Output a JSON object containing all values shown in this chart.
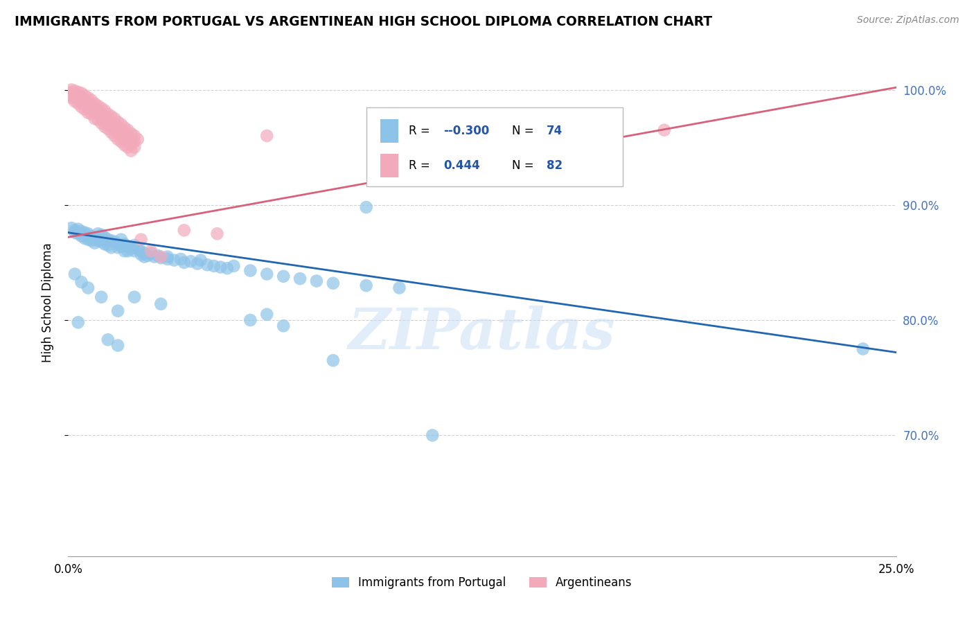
{
  "title": "IMMIGRANTS FROM PORTUGAL VS ARGENTINEAN HIGH SCHOOL DIPLOMA CORRELATION CHART",
  "source": "Source: ZipAtlas.com",
  "ylabel": "High School Diploma",
  "blue_color": "#8dc3e8",
  "pink_color": "#f2aabb",
  "blue_line_color": "#2066b0",
  "pink_line_color": "#d9607a",
  "watermark": "ZIPatlas",
  "blue_scatter": [
    [
      0.001,
      0.88
    ],
    [
      0.002,
      0.878
    ],
    [
      0.002,
      0.876
    ],
    [
      0.003,
      0.879
    ],
    [
      0.003,
      0.875
    ],
    [
      0.004,
      0.877
    ],
    [
      0.004,
      0.873
    ],
    [
      0.005,
      0.876
    ],
    [
      0.005,
      0.871
    ],
    [
      0.006,
      0.875
    ],
    [
      0.006,
      0.87
    ],
    [
      0.007,
      0.873
    ],
    [
      0.007,
      0.869
    ],
    [
      0.008,
      0.872
    ],
    [
      0.008,
      0.867
    ],
    [
      0.009,
      0.875
    ],
    [
      0.009,
      0.869
    ],
    [
      0.01,
      0.874
    ],
    [
      0.01,
      0.868
    ],
    [
      0.011,
      0.872
    ],
    [
      0.011,
      0.866
    ],
    [
      0.012,
      0.87
    ],
    [
      0.012,
      0.865
    ],
    [
      0.013,
      0.869
    ],
    [
      0.013,
      0.863
    ],
    [
      0.014,
      0.868
    ],
    [
      0.015,
      0.866
    ],
    [
      0.015,
      0.863
    ],
    [
      0.016,
      0.87
    ],
    [
      0.016,
      0.864
    ],
    [
      0.017,
      0.866
    ],
    [
      0.017,
      0.86
    ],
    [
      0.018,
      0.864
    ],
    [
      0.018,
      0.86
    ],
    [
      0.019,
      0.862
    ],
    [
      0.02,
      0.865
    ],
    [
      0.02,
      0.86
    ],
    [
      0.021,
      0.862
    ],
    [
      0.022,
      0.86
    ],
    [
      0.022,
      0.857
    ],
    [
      0.023,
      0.858
    ],
    [
      0.023,
      0.855
    ],
    [
      0.024,
      0.856
    ],
    [
      0.025,
      0.858
    ],
    [
      0.026,
      0.855
    ],
    [
      0.027,
      0.856
    ],
    [
      0.028,
      0.854
    ],
    [
      0.03,
      0.853
    ],
    [
      0.03,
      0.855
    ],
    [
      0.032,
      0.852
    ],
    [
      0.034,
      0.853
    ],
    [
      0.035,
      0.85
    ],
    [
      0.037,
      0.851
    ],
    [
      0.039,
      0.849
    ],
    [
      0.04,
      0.852
    ],
    [
      0.042,
      0.848
    ],
    [
      0.044,
      0.847
    ],
    [
      0.046,
      0.846
    ],
    [
      0.048,
      0.845
    ],
    [
      0.05,
      0.847
    ],
    [
      0.055,
      0.843
    ],
    [
      0.06,
      0.84
    ],
    [
      0.065,
      0.838
    ],
    [
      0.07,
      0.836
    ],
    [
      0.075,
      0.834
    ],
    [
      0.08,
      0.832
    ],
    [
      0.09,
      0.83
    ],
    [
      0.1,
      0.828
    ],
    [
      0.002,
      0.84
    ],
    [
      0.004,
      0.833
    ],
    [
      0.006,
      0.828
    ],
    [
      0.01,
      0.82
    ],
    [
      0.015,
      0.808
    ],
    [
      0.02,
      0.82
    ],
    [
      0.028,
      0.814
    ],
    [
      0.055,
      0.8
    ],
    [
      0.06,
      0.805
    ],
    [
      0.065,
      0.795
    ],
    [
      0.09,
      0.898
    ],
    [
      0.003,
      0.798
    ],
    [
      0.012,
      0.783
    ],
    [
      0.015,
      0.778
    ],
    [
      0.08,
      0.765
    ],
    [
      0.11,
      0.7
    ],
    [
      0.24,
      0.775
    ]
  ],
  "pink_scatter": [
    [
      0.001,
      1.0
    ],
    [
      0.001,
      0.998
    ],
    [
      0.001,
      0.995
    ],
    [
      0.001,
      0.993
    ],
    [
      0.002,
      0.999
    ],
    [
      0.002,
      0.997
    ],
    [
      0.002,
      0.994
    ],
    [
      0.002,
      0.99
    ],
    [
      0.003,
      0.998
    ],
    [
      0.003,
      0.995
    ],
    [
      0.003,
      0.992
    ],
    [
      0.003,
      0.988
    ],
    [
      0.004,
      0.997
    ],
    [
      0.004,
      0.993
    ],
    [
      0.004,
      0.989
    ],
    [
      0.004,
      0.985
    ],
    [
      0.005,
      0.995
    ],
    [
      0.005,
      0.991
    ],
    [
      0.005,
      0.987
    ],
    [
      0.005,
      0.983
    ],
    [
      0.006,
      0.993
    ],
    [
      0.006,
      0.989
    ],
    [
      0.006,
      0.985
    ],
    [
      0.006,
      0.98
    ],
    [
      0.007,
      0.991
    ],
    [
      0.007,
      0.987
    ],
    [
      0.007,
      0.983
    ],
    [
      0.007,
      0.979
    ],
    [
      0.008,
      0.988
    ],
    [
      0.008,
      0.984
    ],
    [
      0.008,
      0.98
    ],
    [
      0.008,
      0.975
    ],
    [
      0.009,
      0.986
    ],
    [
      0.009,
      0.982
    ],
    [
      0.009,
      0.978
    ],
    [
      0.009,
      0.974
    ],
    [
      0.01,
      0.984
    ],
    [
      0.01,
      0.98
    ],
    [
      0.01,
      0.975
    ],
    [
      0.01,
      0.971
    ],
    [
      0.011,
      0.982
    ],
    [
      0.011,
      0.977
    ],
    [
      0.011,
      0.972
    ],
    [
      0.011,
      0.968
    ],
    [
      0.012,
      0.979
    ],
    [
      0.012,
      0.975
    ],
    [
      0.012,
      0.97
    ],
    [
      0.012,
      0.966
    ],
    [
      0.013,
      0.977
    ],
    [
      0.013,
      0.972
    ],
    [
      0.013,
      0.968
    ],
    [
      0.013,
      0.963
    ],
    [
      0.014,
      0.975
    ],
    [
      0.014,
      0.97
    ],
    [
      0.014,
      0.965
    ],
    [
      0.014,
      0.96
    ],
    [
      0.015,
      0.972
    ],
    [
      0.015,
      0.967
    ],
    [
      0.015,
      0.962
    ],
    [
      0.015,
      0.957
    ],
    [
      0.016,
      0.97
    ],
    [
      0.016,
      0.965
    ],
    [
      0.016,
      0.96
    ],
    [
      0.016,
      0.955
    ],
    [
      0.017,
      0.967
    ],
    [
      0.017,
      0.962
    ],
    [
      0.017,
      0.957
    ],
    [
      0.017,
      0.952
    ],
    [
      0.018,
      0.965
    ],
    [
      0.018,
      0.96
    ],
    [
      0.018,
      0.955
    ],
    [
      0.018,
      0.95
    ],
    [
      0.019,
      0.962
    ],
    [
      0.019,
      0.957
    ],
    [
      0.019,
      0.952
    ],
    [
      0.019,
      0.947
    ],
    [
      0.02,
      0.96
    ],
    [
      0.02,
      0.955
    ],
    [
      0.02,
      0.95
    ],
    [
      0.021,
      0.957
    ],
    [
      0.022,
      0.87
    ],
    [
      0.025,
      0.86
    ],
    [
      0.028,
      0.855
    ],
    [
      0.035,
      0.878
    ],
    [
      0.045,
      0.875
    ],
    [
      0.06,
      0.96
    ],
    [
      0.18,
      0.965
    ]
  ],
  "blue_line": {
    "x0": 0.0,
    "y0": 0.876,
    "x1": 0.25,
    "y1": 0.772
  },
  "pink_line": {
    "x0": 0.0,
    "y0": 0.872,
    "x1": 0.25,
    "y1": 1.002
  },
  "xlim": [
    0.0,
    0.25
  ],
  "ylim": [
    0.595,
    1.035
  ],
  "yticks": [
    0.7,
    0.8,
    0.9,
    1.0
  ],
  "ytick_labels": [
    "70.0%",
    "80.0%",
    "90.0%",
    "100.0%"
  ],
  "xticks": [
    0.0,
    0.025,
    0.05,
    0.075,
    0.1,
    0.125,
    0.15,
    0.175,
    0.2,
    0.225,
    0.25
  ],
  "xtick_labels_show": [
    "0.0%",
    "",
    "",
    "",
    "",
    "",
    "",
    "",
    "",
    "",
    "25.0%"
  ],
  "legend_r_blue": "-0.300",
  "legend_n_blue": "74",
  "legend_r_pink": "0.444",
  "legend_n_pink": "82"
}
